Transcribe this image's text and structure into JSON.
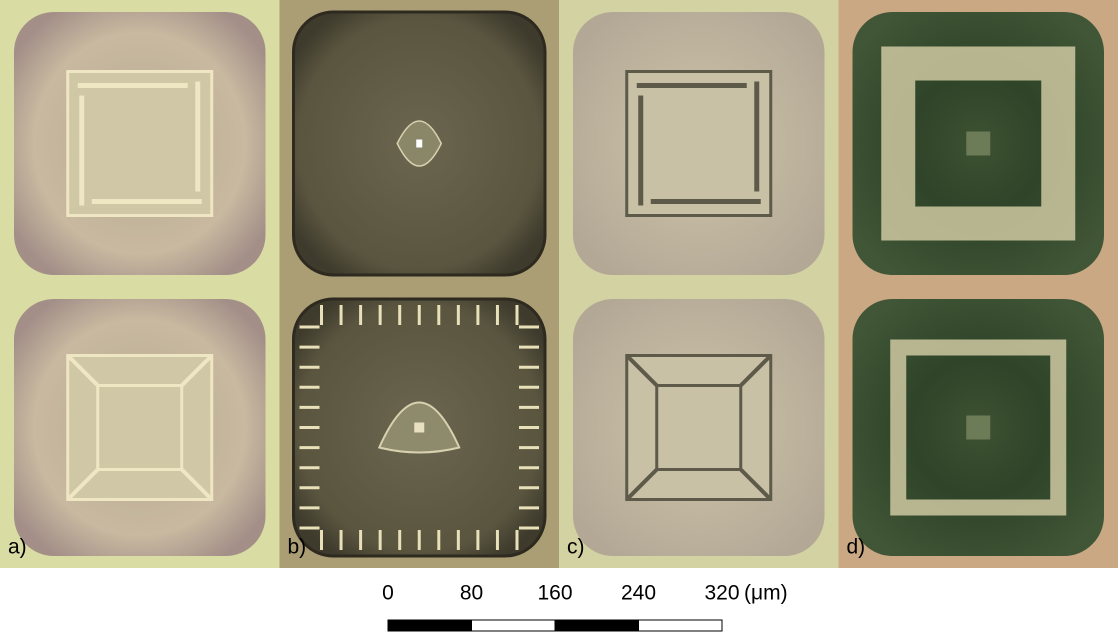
{
  "panels": {
    "labels": [
      "a)",
      "b)",
      "c)",
      "d)"
    ]
  },
  "scale_bar": {
    "ticks": [
      0,
      80,
      160,
      240,
      320
    ],
    "unit": "(μm)"
  }
}
